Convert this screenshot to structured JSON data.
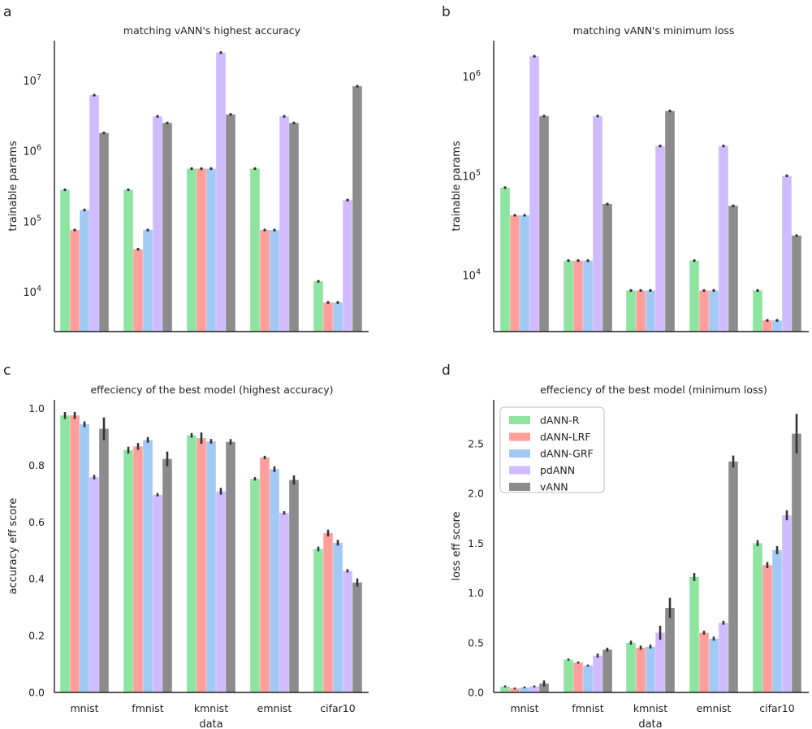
{
  "legend_entries": [
    "dANN-R",
    "dANN-LRF",
    "dANN-GRF",
    "pdANN",
    "vANN"
  ],
  "colors": {
    "dANN-R": "#8de5a1",
    "dANN-LRF": "#ff9f9b",
    "dANN-GRF": "#a1c9f4",
    "pdANN": "#d0bbff",
    "vANN": "#8c8c8c",
    "axis": "#222222",
    "errorbar": "#333333"
  },
  "chart_data": [
    {
      "panel": "a",
      "type": "bar",
      "title": "matching vANN's highest accuracy",
      "xlabel": "",
      "ylabel": "trainable params",
      "yscale": "log",
      "ylim": [
        2700,
        37000000
      ],
      "y_ticks": [
        {
          "value": 10000,
          "base": "10",
          "exp": "4"
        },
        {
          "value": 100000,
          "base": "10",
          "exp": "5"
        },
        {
          "value": 1000000,
          "base": "10",
          "exp": "6"
        },
        {
          "value": 10000000,
          "base": "10",
          "exp": "7"
        }
      ],
      "categories": [
        "mnist",
        "fmnist",
        "kmnist",
        "emnist",
        "cifar10"
      ],
      "show_x_tick_labels": false,
      "series": [
        {
          "name": "dANN-R",
          "values": [
            280000,
            280000,
            560000,
            560000,
            14000
          ]
        },
        {
          "name": "dANN-LRF",
          "values": [
            75000,
            40000,
            560000,
            75000,
            7000
          ]
        },
        {
          "name": "dANN-GRF",
          "values": [
            145000,
            75000,
            560000,
            75000,
            7000
          ]
        },
        {
          "name": "pdANN",
          "values": [
            6200000,
            3100000,
            25000000,
            3100000,
            200000
          ]
        },
        {
          "name": "vANN",
          "values": [
            1800000,
            2500000,
            3300000,
            2500000,
            8300000
          ]
        }
      ],
      "legend": false
    },
    {
      "panel": "b",
      "type": "bar",
      "title": "matching vANN's minimum loss",
      "xlabel": "",
      "ylabel": "trainable params",
      "yscale": "log",
      "ylim": [
        2700,
        2300000
      ],
      "y_ticks": [
        {
          "value": 10000,
          "base": "10",
          "exp": "4"
        },
        {
          "value": 100000,
          "base": "10",
          "exp": "5"
        },
        {
          "value": 1000000,
          "base": "10",
          "exp": "6"
        }
      ],
      "categories": [
        "mnist",
        "fmnist",
        "kmnist",
        "emnist",
        "cifar10"
      ],
      "show_x_tick_labels": false,
      "series": [
        {
          "name": "dANN-R",
          "values": [
            76000,
            14000,
            7000,
            14000,
            7000
          ]
        },
        {
          "name": "dANN-LRF",
          "values": [
            40000,
            14000,
            7000,
            7000,
            3500
          ]
        },
        {
          "name": "dANN-GRF",
          "values": [
            40000,
            14000,
            7000,
            7000,
            3500
          ]
        },
        {
          "name": "pdANN",
          "values": [
            1600000,
            400000,
            200000,
            200000,
            100000
          ]
        },
        {
          "name": "vANN",
          "values": [
            400000,
            52000,
            450000,
            50000,
            25000
          ]
        }
      ],
      "legend": false
    },
    {
      "panel": "c",
      "type": "bar",
      "title": "effeciency of the best model (highest accuracy)",
      "xlabel": "data",
      "ylabel": "accuracy eff score",
      "yscale": "linear",
      "ylim": [
        0,
        1.03
      ],
      "y_ticks": [
        {
          "value": 0,
          "label": "0.0"
        },
        {
          "value": 0.2,
          "label": "0.2"
        },
        {
          "value": 0.4,
          "label": "0.4"
        },
        {
          "value": 0.6,
          "label": "0.6"
        },
        {
          "value": 0.8,
          "label": "0.8"
        },
        {
          "value": 1.0,
          "label": "1.0"
        }
      ],
      "categories": [
        "mnist",
        "fmnist",
        "kmnist",
        "emnist",
        "cifar10"
      ],
      "show_x_tick_labels": true,
      "series": [
        {
          "name": "dANN-R",
          "values": [
            0.975,
            0.853,
            0.905,
            0.752,
            0.505
          ],
          "err": [
            0.012,
            0.012,
            0.008,
            0.006,
            0.008
          ]
        },
        {
          "name": "dANN-LRF",
          "values": [
            0.975,
            0.866,
            0.895,
            0.827,
            0.561
          ],
          "err": [
            0.012,
            0.012,
            0.02,
            0.006,
            0.012
          ]
        },
        {
          "name": "dANN-GRF",
          "values": [
            0.944,
            0.889,
            0.884,
            0.786,
            0.527
          ],
          "err": [
            0.01,
            0.01,
            0.008,
            0.01,
            0.01
          ]
        },
        {
          "name": "pdANN",
          "values": [
            0.758,
            0.696,
            0.708,
            0.632,
            0.428
          ],
          "err": [
            0.008,
            0.006,
            0.012,
            0.006,
            0.006
          ]
        },
        {
          "name": "vANN",
          "values": [
            0.928,
            0.822,
            0.882,
            0.748,
            0.387
          ],
          "err": [
            0.04,
            0.026,
            0.01,
            0.016,
            0.014
          ]
        }
      ],
      "legend": false
    },
    {
      "panel": "d",
      "type": "bar",
      "title": "effeciency of the best model (minimum loss)",
      "xlabel": "data",
      "ylabel": "loss eff score",
      "yscale": "linear",
      "ylim": [
        0,
        2.94
      ],
      "y_ticks": [
        {
          "value": 0,
          "label": "0.0"
        },
        {
          "value": 0.5,
          "label": "0.5"
        },
        {
          "value": 1.0,
          "label": "1.0"
        },
        {
          "value": 1.5,
          "label": "1.5"
        },
        {
          "value": 2.0,
          "label": "2.0"
        },
        {
          "value": 2.5,
          "label": "2.5"
        }
      ],
      "categories": [
        "mnist",
        "fmnist",
        "kmnist",
        "emnist",
        "cifar10"
      ],
      "show_x_tick_labels": true,
      "series": [
        {
          "name": "dANN-R",
          "values": [
            0.06,
            0.33,
            0.5,
            1.16,
            1.5
          ],
          "err": [
            0.01,
            0.01,
            0.02,
            0.04,
            0.03
          ]
        },
        {
          "name": "dANN-LRF",
          "values": [
            0.04,
            0.3,
            0.45,
            0.6,
            1.28
          ],
          "err": [
            0.01,
            0.01,
            0.02,
            0.02,
            0.03
          ]
        },
        {
          "name": "dANN-GRF",
          "values": [
            0.05,
            0.27,
            0.46,
            0.54,
            1.43
          ],
          "err": [
            0.01,
            0.01,
            0.02,
            0.02,
            0.04
          ]
        },
        {
          "name": "pdANN",
          "values": [
            0.06,
            0.37,
            0.6,
            0.7,
            1.78
          ],
          "err": [
            0.01,
            0.02,
            0.07,
            0.02,
            0.05
          ]
        },
        {
          "name": "vANN",
          "values": [
            0.09,
            0.43,
            0.85,
            2.32,
            2.6
          ],
          "err": [
            0.03,
            0.02,
            0.1,
            0.06,
            0.2
          ]
        }
      ],
      "legend": true,
      "legend_location": "upper-left"
    }
  ]
}
